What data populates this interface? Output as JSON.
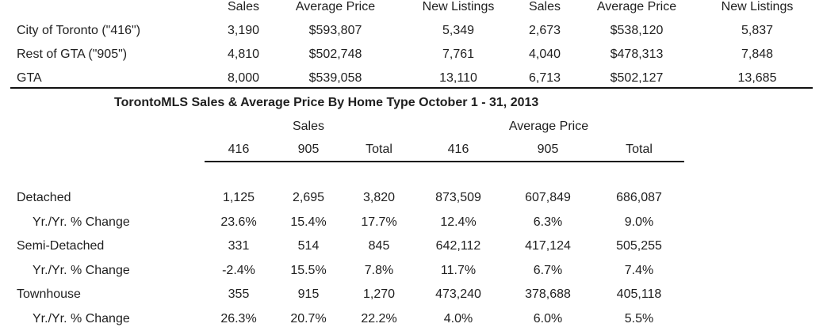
{
  "top_table": {
    "headers": [
      "Sales",
      "Average Price",
      "New Listings",
      "Sales",
      "Average Price",
      "New Listings"
    ],
    "rows": [
      {
        "label": "City of Toronto (\"416\")",
        "values": [
          "3,190",
          "$593,807",
          "5,349",
          "2,673",
          "$538,120",
          "5,837"
        ]
      },
      {
        "label": "Rest of GTA (\"905\")",
        "values": [
          "4,810",
          "$502,748",
          "7,761",
          "4,040",
          "$478,313",
          "7,848"
        ]
      },
      {
        "label": "GTA",
        "values": [
          "8,000",
          "$539,058",
          "13,110",
          "6,713",
          "$502,127",
          "13,685"
        ]
      }
    ]
  },
  "home_type_table": {
    "title": "TorontoMLS Sales & Average Price  By Home Type October 1 - 31, 2013",
    "group_headers": {
      "sales": "Sales",
      "average_price": "Average Price"
    },
    "sub_headers": [
      "416",
      "905",
      "Total",
      "416",
      "905",
      "Total"
    ],
    "rows": [
      {
        "label": "Detached",
        "values": [
          "1,125",
          "2,695",
          "3,820",
          "873,509",
          "607,849",
          "686,087"
        ]
      },
      {
        "label": "Yr./Yr. % Change",
        "values": [
          "23.6%",
          "15.4%",
          "17.7%",
          "12.4%",
          "6.3%",
          "9.0%"
        ]
      },
      {
        "label": "Semi-Detached",
        "values": [
          "331",
          "514",
          "845",
          "642,112",
          "417,124",
          "505,255"
        ]
      },
      {
        "label": "Yr./Yr. % Change",
        "values": [
          "-2.4%",
          "15.5%",
          "7.8%",
          "11.7%",
          "6.7%",
          "7.4%"
        ]
      },
      {
        "label": "Townhouse",
        "values": [
          "355",
          "915",
          "1,270",
          "473,240",
          "378,688",
          "405,118"
        ]
      },
      {
        "label": "Yr./Yr. % Change",
        "values": [
          "26.3%",
          "20.7%",
          "22.2%",
          "4.0%",
          "6.0%",
          "5.5%"
        ]
      }
    ]
  }
}
